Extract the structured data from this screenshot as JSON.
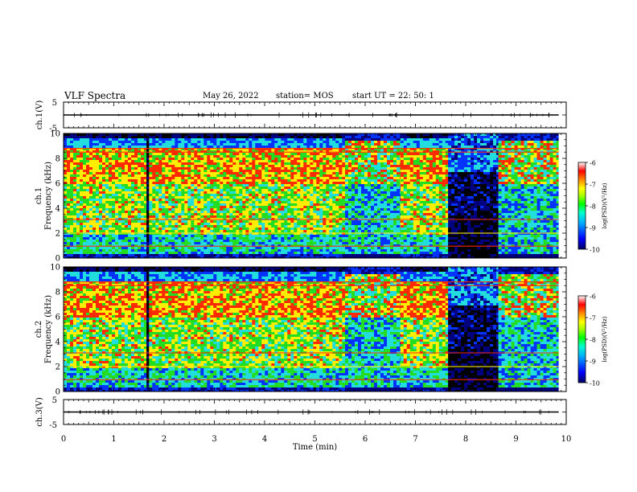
{
  "header": {
    "title": "VLF Spectra",
    "date": "May 26, 2022",
    "station": "station= MOS",
    "start": "start  UT  =   22: 50: 1"
  },
  "chart_data": [
    {
      "type": "line",
      "panel": "ch1-voltage",
      "ylabel": "ch.1(V)",
      "ylim": [
        -5,
        5
      ],
      "yticks": [
        "5",
        "-5"
      ],
      "xlim": [
        0,
        10
      ],
      "description_values": {
        "baseline_y": 0
      }
    },
    {
      "type": "heatmap",
      "panel": "ch1-spectrogram",
      "ylabel": "ch.1\nFrequency (kHz)",
      "ylabel_lines": [
        "ch.1",
        "Frequency (kHz)"
      ],
      "ylim": [
        0,
        10
      ],
      "yticks": [
        "0",
        "2",
        "4",
        "6",
        "8",
        "10"
      ],
      "xlim": [
        0,
        10
      ],
      "data_end_min": 9.85,
      "segments_min": [
        {
          "start": 0.0,
          "end": 1.65,
          "level": "high"
        },
        {
          "start": 1.65,
          "end": 1.7,
          "level": "gap"
        },
        {
          "start": 1.7,
          "end": 5.6,
          "level": "high"
        },
        {
          "start": 5.6,
          "end": 6.7,
          "level": "mixed"
        },
        {
          "start": 6.7,
          "end": 7.65,
          "level": "high"
        },
        {
          "start": 7.65,
          "end": 8.65,
          "level": "low"
        },
        {
          "start": 8.65,
          "end": 9.85,
          "level": "mixed"
        }
      ],
      "colorbar": {
        "label": "log(PSD)(V²/Hz)",
        "ticks": [
          "-6",
          "-7",
          "-8",
          "-9",
          "-10"
        ],
        "range": [
          -10,
          -6
        ]
      }
    },
    {
      "type": "heatmap",
      "panel": "ch2-spectrogram",
      "ylabel": "ch.2\nFrequency (kHz)",
      "ylabel_lines": [
        "ch.2",
        "Frequency (kHz)"
      ],
      "ylim": [
        0,
        10
      ],
      "yticks": [
        "0",
        "2",
        "4",
        "6",
        "8",
        "10"
      ],
      "xlim": [
        0,
        10
      ],
      "data_end_min": 9.85,
      "segments_min": [
        {
          "start": 0.0,
          "end": 1.65,
          "level": "high"
        },
        {
          "start": 1.65,
          "end": 1.7,
          "level": "gap"
        },
        {
          "start": 1.7,
          "end": 5.6,
          "level": "high"
        },
        {
          "start": 5.6,
          "end": 6.7,
          "level": "mixed"
        },
        {
          "start": 6.7,
          "end": 7.65,
          "level": "high"
        },
        {
          "start": 7.65,
          "end": 8.65,
          "level": "low"
        },
        {
          "start": 8.65,
          "end": 9.85,
          "level": "mixed"
        }
      ],
      "colorbar": {
        "label": "log(PSD)(V²/Hz)",
        "ticks": [
          "-6",
          "-7",
          "-8",
          "-9",
          "-10"
        ],
        "range": [
          -10,
          -6
        ]
      }
    },
    {
      "type": "line",
      "panel": "ch3-voltage",
      "ylabel": "ch.3(V)",
      "ylim": [
        -5,
        5
      ],
      "yticks": [
        "5",
        "-5"
      ],
      "xlim": [
        0,
        10
      ],
      "description_values": {
        "baseline_y": 0
      }
    }
  ],
  "x_axis": {
    "label": "Time  (min)",
    "ticks": [
      "0",
      "1",
      "2",
      "3",
      "4",
      "5",
      "6",
      "7",
      "8",
      "9",
      "10"
    ]
  },
  "colors": {
    "high": "#ff2a00",
    "mid": "#ffee00",
    "green": "#22dd22",
    "cyan": "#22dddd",
    "blue": "#0033ff",
    "navy": "#000080",
    "black": "#000000"
  }
}
